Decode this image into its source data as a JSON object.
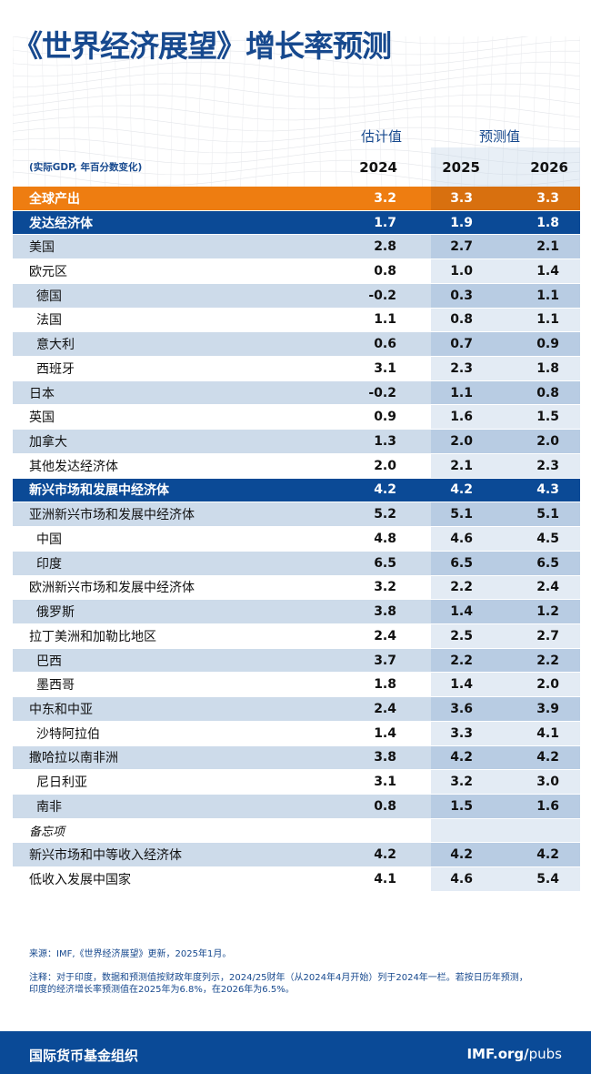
{
  "title": "《世界经济展望》增长率预测",
  "header": {
    "estimate": "估计值",
    "forecast": "预测值",
    "unit": "(实际GDP, 年百分数变化)",
    "years": [
      "2024",
      "2025",
      "2026"
    ]
  },
  "rows": [
    {
      "label": "全球产出",
      "values": [
        "3.2",
        "3.3",
        "3.3"
      ],
      "style": "orange"
    },
    {
      "label": "发达经济体",
      "values": [
        "1.7",
        "1.9",
        "1.8"
      ],
      "style": "blue"
    },
    {
      "label": "美国",
      "values": [
        "2.8",
        "2.7",
        "2.1"
      ],
      "style": "shade"
    },
    {
      "label": "欧元区",
      "values": [
        "0.8",
        "1.0",
        "1.4"
      ],
      "style": "plain"
    },
    {
      "label": "德国",
      "values": [
        "-0.2",
        "0.3",
        "1.1"
      ],
      "style": "shade",
      "indent": true
    },
    {
      "label": "法国",
      "values": [
        "1.1",
        "0.8",
        "1.1"
      ],
      "style": "plain",
      "indent": true
    },
    {
      "label": "意大利",
      "values": [
        "0.6",
        "0.7",
        "0.9"
      ],
      "style": "shade",
      "indent": true
    },
    {
      "label": "西班牙",
      "values": [
        "3.1",
        "2.3",
        "1.8"
      ],
      "style": "plain",
      "indent": true
    },
    {
      "label": "日本",
      "values": [
        "-0.2",
        "1.1",
        "0.8"
      ],
      "style": "shade"
    },
    {
      "label": "英国",
      "values": [
        "0.9",
        "1.6",
        "1.5"
      ],
      "style": "plain"
    },
    {
      "label": "加拿大",
      "values": [
        "1.3",
        "2.0",
        "2.0"
      ],
      "style": "shade"
    },
    {
      "label": "其他发达经济体",
      "values": [
        "2.0",
        "2.1",
        "2.3"
      ],
      "style": "plain"
    },
    {
      "label": "新兴市场和发展中经济体",
      "values": [
        "4.2",
        "4.2",
        "4.3"
      ],
      "style": "blue"
    },
    {
      "label": "亚洲新兴市场和发展中经济体",
      "values": [
        "5.2",
        "5.1",
        "5.1"
      ],
      "style": "shade"
    },
    {
      "label": "中国",
      "values": [
        "4.8",
        "4.6",
        "4.5"
      ],
      "style": "plain",
      "indent": true
    },
    {
      "label": "印度",
      "values": [
        "6.5",
        "6.5",
        "6.5"
      ],
      "style": "shade",
      "indent": true
    },
    {
      "label": "欧洲新兴市场和发展中经济体",
      "values": [
        "3.2",
        "2.2",
        "2.4"
      ],
      "style": "plain"
    },
    {
      "label": "俄罗斯",
      "values": [
        "3.8",
        "1.4",
        "1.2"
      ],
      "style": "shade",
      "indent": true
    },
    {
      "label": "拉丁美洲和加勒比地区",
      "values": [
        "2.4",
        "2.5",
        "2.7"
      ],
      "style": "plain"
    },
    {
      "label": "巴西",
      "values": [
        "3.7",
        "2.2",
        "2.2"
      ],
      "style": "shade",
      "indent": true
    },
    {
      "label": "墨西哥",
      "values": [
        "1.8",
        "1.4",
        "2.0"
      ],
      "style": "plain",
      "indent": true
    },
    {
      "label": "中东和中亚",
      "values": [
        "2.4",
        "3.6",
        "3.9"
      ],
      "style": "shade"
    },
    {
      "label": "沙特阿拉伯",
      "values": [
        "1.4",
        "3.3",
        "4.1"
      ],
      "style": "plain",
      "indent": true
    },
    {
      "label": "撒哈拉以南非洲",
      "values": [
        "3.8",
        "4.2",
        "4.2"
      ],
      "style": "shade"
    },
    {
      "label": "尼日利亚",
      "values": [
        "3.1",
        "3.2",
        "3.0"
      ],
      "style": "plain",
      "indent": true
    },
    {
      "label": "南非",
      "values": [
        "0.8",
        "1.5",
        "1.6"
      ],
      "style": "shade",
      "indent": true
    },
    {
      "label": "备忘项",
      "values": [
        "",
        "",
        ""
      ],
      "style": "plain memo"
    },
    {
      "label": "新兴市场和中等收入经济体",
      "values": [
        "4.2",
        "4.2",
        "4.2"
      ],
      "style": "shade"
    },
    {
      "label": "低收入发展中国家",
      "values": [
        "4.1",
        "4.6",
        "5.4"
      ],
      "style": "plain"
    }
  ],
  "notes": {
    "source": "来源：IMF,《世界经济展望》更新，2025年1月。",
    "note_line1": "注释：对于印度，数据和预测值按财政年度列示，2024/25财年（从2024年4月开始）列于2024年一栏。若按日历年预测，",
    "note_line2": "印度的经济增长率预测值在2025年为6.8%，在2026年为6.5%。"
  },
  "footer": {
    "org": "国际货币基金组织",
    "site_bold": "IMF.org/",
    "site_rest": "pubs"
  },
  "colors": {
    "blue": "#0b4a96",
    "orange": "#ee7d11",
    "title": "#17498e"
  }
}
